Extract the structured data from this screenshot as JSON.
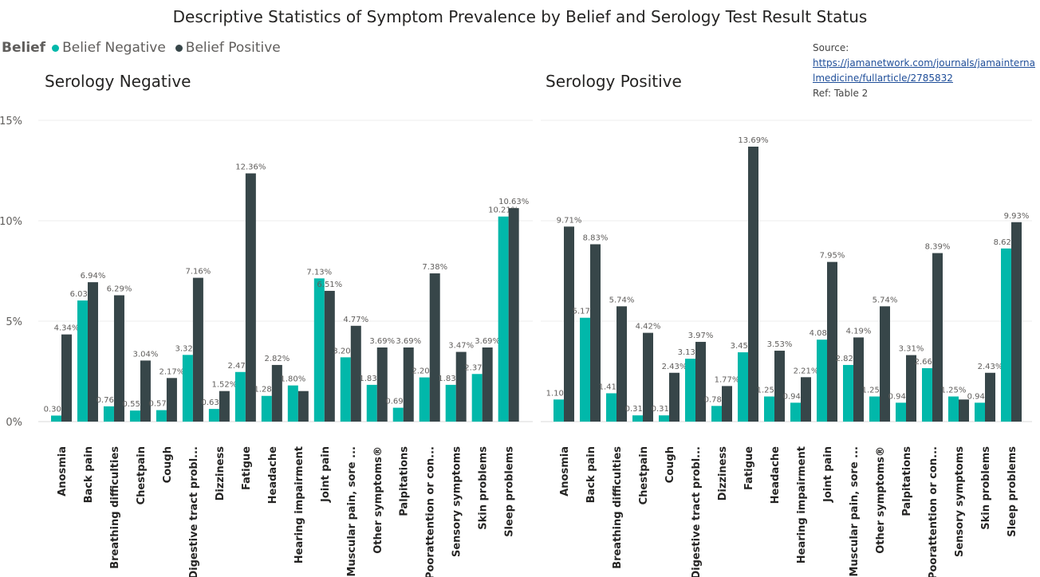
{
  "title": "Descriptive Statistics of Symptom Prevalence by Belief and Serology Test Result Status",
  "legend": {
    "title": "Belief",
    "items": [
      {
        "label": "Belief Negative",
        "color": "#01b8aa"
      },
      {
        "label": "Belief Positive",
        "color": "#374649"
      }
    ]
  },
  "source": {
    "label": "Source:",
    "link": "https://jamanetwork.com/journals/jamainternalmedicine/fullarticle/2785832",
    "ref": "Ref: Table 2"
  },
  "chart_data": [
    {
      "type": "bar",
      "title": "Serology Negative",
      "categories": [
        "Anosmia",
        "Back pain",
        "Breathing difficulties",
        "Chestpain",
        "Cough",
        "Digestive tract probl...",
        "Dizziness",
        "Fatigue",
        "Headache",
        "Hearing impairment",
        "Joint pain",
        "Muscular pain, sore ...",
        "Other symptoms®",
        "Palpitations",
        "Poorattention or con...",
        "Sensory symptoms",
        "Skin problems",
        "Sleep problems"
      ],
      "series": [
        {
          "name": "Belief Negative",
          "color": "#01b8aa",
          "values": [
            0.3,
            6.03,
            0.76,
            0.55,
            0.57,
            3.32,
            0.63,
            2.47,
            1.28,
            1.8,
            7.13,
            3.2,
            1.83,
            0.69,
            2.2,
            1.83,
            2.37,
            10.21
          ],
          "labels": [
            "0.30%",
            "6.03%",
            "0.76%",
            "0.55%",
            "0.57%",
            "3.32%",
            "0.63%",
            "2.47%",
            "1.28%",
            "1.80%",
            "7.13%",
            "3.20%",
            "1.83%",
            "0.69%",
            "2.20%",
            "1.83%",
            "2.37%",
            "10.21%"
          ]
        },
        {
          "name": "Belief Positive",
          "color": "#374649",
          "values": [
            4.34,
            6.94,
            6.29,
            3.04,
            2.17,
            7.16,
            1.52,
            12.36,
            2.82,
            1.52,
            6.51,
            4.77,
            3.69,
            3.69,
            7.38,
            3.47,
            3.69,
            10.63
          ],
          "labels": [
            "4.34%",
            "6.94%",
            "6.29%",
            "3.04%",
            "2.17%",
            "7.16%",
            "1.52%",
            "12.36%",
            "2.82%",
            "",
            "6.51%",
            "4.77%",
            "3.69%",
            "3.69%",
            "7.38%",
            "3.47%",
            "3.69%",
            "10.63%"
          ]
        }
      ],
      "ylim": [
        0,
        15
      ],
      "yticks": [
        "0%",
        "5%",
        "10%",
        "15%"
      ],
      "grid": true
    },
    {
      "type": "bar",
      "title": "Serology Positive",
      "categories": [
        "Anosmia",
        "Back pain",
        "Breathing difficulties",
        "Chestpain",
        "Cough",
        "Digestive tract probl...",
        "Dizziness",
        "Fatigue",
        "Headache",
        "Hearing impairment",
        "Joint pain",
        "Muscular pain, sore ...",
        "Other symptoms®",
        "Palpitations",
        "Poorattention or con...",
        "Sensory symptoms",
        "Skin problems",
        "Sleep problems"
      ],
      "series": [
        {
          "name": "Belief Negative",
          "color": "#01b8aa",
          "values": [
            1.1,
            5.17,
            1.41,
            0.31,
            0.31,
            3.13,
            0.78,
            3.45,
            1.25,
            0.94,
            4.08,
            2.82,
            1.25,
            0.94,
            2.66,
            1.25,
            0.94,
            8.62
          ],
          "labels": [
            "1.10%",
            "5.17%",
            "1.41%",
            "0.31%",
            "0.31%",
            "3.13%",
            "0.78%",
            "3.45%",
            "1.25%",
            "0.94%",
            "4.08%",
            "2.82%",
            "1.25%",
            "0.94%",
            "2.66%",
            "1.25%",
            "0.94%",
            "8.62%"
          ]
        },
        {
          "name": "Belief Positive",
          "color": "#374649",
          "values": [
            9.71,
            8.83,
            5.74,
            4.42,
            2.43,
            3.97,
            1.77,
            13.69,
            3.53,
            2.21,
            7.95,
            4.19,
            5.74,
            3.31,
            8.39,
            1.1,
            2.43,
            9.93
          ],
          "labels": [
            "9.71%",
            "8.83%",
            "5.74%",
            "4.42%",
            "2.43%",
            "3.97%",
            "1.77%",
            "13.69%",
            "3.53%",
            "2.21%",
            "7.95%",
            "4.19%",
            "5.74%",
            "3.31%",
            "8.39%",
            "",
            "2.43%",
            "9.93%"
          ]
        }
      ],
      "ylim": [
        0,
        15
      ],
      "grid": true
    }
  ]
}
